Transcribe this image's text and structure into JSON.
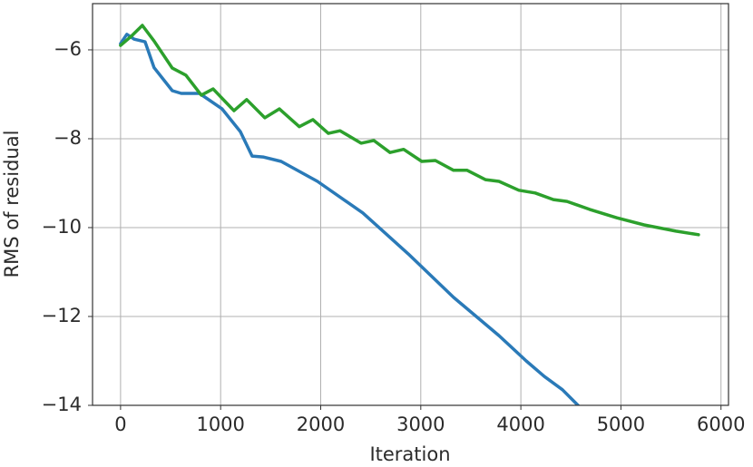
{
  "chart_data": {
    "type": "line",
    "x_label": "Iteration",
    "y_label": "RMS of residual",
    "xlim": [
      -280,
      6075
    ],
    "ylim": [
      -14,
      -4.96
    ],
    "xticks": [
      0,
      1000,
      2000,
      3000,
      4000,
      5000,
      6000
    ],
    "yticks": [
      {
        "value": -6,
        "label": "−6"
      },
      {
        "value": -8,
        "label": "−8"
      },
      {
        "value": -10,
        "label": "−10"
      },
      {
        "value": -12,
        "label": "−12"
      },
      {
        "value": -14,
        "label": "−14"
      }
    ],
    "grid": true,
    "series": [
      {
        "color": "#2a7ab8",
        "x": [
          0,
          63,
          136,
          245,
          335,
          517,
          607,
          789,
          1015,
          1197,
          1315,
          1423,
          1605,
          1967,
          2421,
          2874,
          3327,
          3781,
          4053,
          4234,
          4416,
          4597
        ],
        "values": [
          -5.86,
          -5.65,
          -5.76,
          -5.82,
          -6.4,
          -6.92,
          -6.98,
          -6.98,
          -7.33,
          -7.84,
          -8.39,
          -8.41,
          -8.51,
          -8.96,
          -9.67,
          -10.59,
          -11.57,
          -12.43,
          -13.0,
          -13.35,
          -13.65,
          -14.06
        ]
      },
      {
        "color": "#2ca02c",
        "x": [
          0,
          109,
          218,
          335,
          517,
          653,
          807,
          925,
          1133,
          1260,
          1442,
          1587,
          1786,
          1922,
          2076,
          2194,
          2403,
          2530,
          2693,
          2829,
          3010,
          3146,
          3327,
          3463,
          3645,
          3781,
          3980,
          4143,
          4325,
          4461,
          4687,
          4959,
          5231,
          5549,
          5775
        ],
        "values": [
          -5.9,
          -5.69,
          -5.45,
          -5.8,
          -6.41,
          -6.57,
          -7.02,
          -6.88,
          -7.37,
          -7.12,
          -7.53,
          -7.33,
          -7.73,
          -7.57,
          -7.88,
          -7.82,
          -8.1,
          -8.04,
          -8.31,
          -8.24,
          -8.51,
          -8.49,
          -8.71,
          -8.71,
          -8.92,
          -8.96,
          -9.16,
          -9.22,
          -9.37,
          -9.41,
          -9.59,
          -9.78,
          -9.94,
          -10.08,
          -10.16
        ]
      }
    ]
  }
}
